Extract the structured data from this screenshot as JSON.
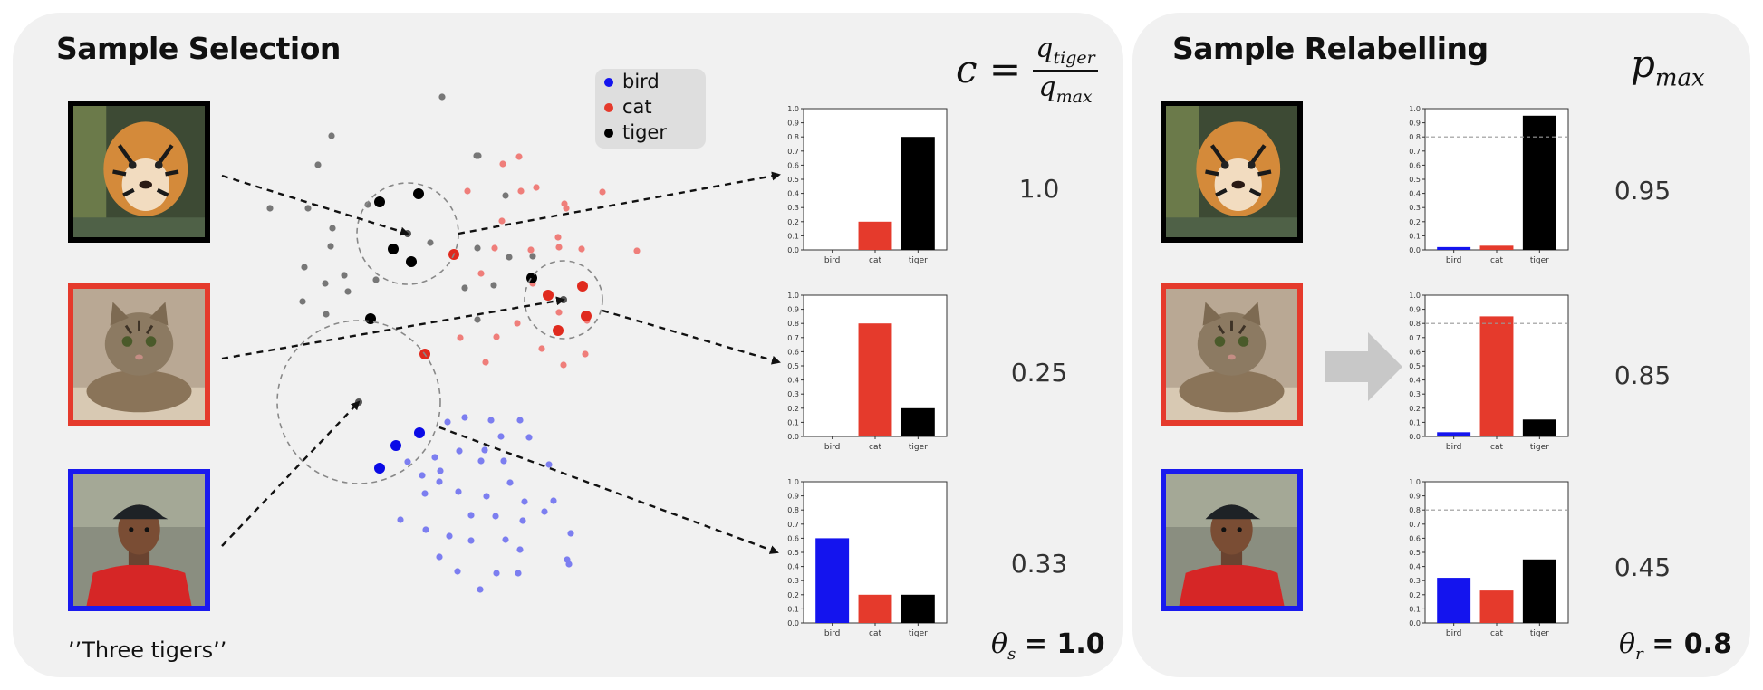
{
  "panels": {
    "selection": {
      "title": "Sample Selection"
    },
    "relabelling": {
      "title": "Sample Relabelling"
    }
  },
  "legend": [
    {
      "label": "bird",
      "color": "#1414ee"
    },
    {
      "label": "cat",
      "color": "#e53a2c"
    },
    {
      "label": "tiger",
      "color": "#000000"
    }
  ],
  "formula": {
    "lhs": "c",
    "numerator": "q",
    "numerator_sub": "tiger",
    "denominator": "q",
    "denominator_sub": "max"
  },
  "pmax_label": {
    "symbol": "p",
    "sub": "max"
  },
  "selection_values": [
    "1.0",
    "0.25",
    "0.33"
  ],
  "relabel_values": [
    "0.95",
    "0.85",
    "0.45"
  ],
  "theta_s": {
    "symbol": "θ",
    "sub": "s",
    "value": "= 1.0"
  },
  "theta_r": {
    "symbol": "θ",
    "sub": "r",
    "value": "= 0.8"
  },
  "caption": "’’Three tigers’’",
  "images": [
    {
      "subject": "tiger-photo",
      "border_color": "#000000"
    },
    {
      "subject": "cat-photo",
      "border_color": "#e53a2c"
    },
    {
      "subject": "person-photo",
      "border_color": "#1a1aee"
    }
  ],
  "chart_data": [
    {
      "type": "bar",
      "categories": [
        "bird",
        "cat",
        "tiger"
      ],
      "values": [
        0.0,
        0.2,
        0.8
      ],
      "colors": [
        "#1414ee",
        "#e53a2c",
        "#000000"
      ],
      "ylim": [
        0,
        1.0
      ],
      "yticks": [
        "0.0",
        "0.1",
        "0.2",
        "0.3",
        "0.4",
        "0.5",
        "0.6",
        "0.7",
        "0.8",
        "0.9",
        "1.0"
      ]
    },
    {
      "type": "bar",
      "categories": [
        "bird",
        "cat",
        "tiger"
      ],
      "values": [
        0.0,
        0.8,
        0.2
      ],
      "colors": [
        "#1414ee",
        "#e53a2c",
        "#000000"
      ],
      "ylim": [
        0,
        1.0
      ],
      "yticks": [
        "0.0",
        "0.1",
        "0.2",
        "0.3",
        "0.4",
        "0.5",
        "0.6",
        "0.7",
        "0.8",
        "0.9",
        "1.0"
      ]
    },
    {
      "type": "bar",
      "categories": [
        "bird",
        "cat",
        "tiger"
      ],
      "values": [
        0.6,
        0.2,
        0.2
      ],
      "colors": [
        "#1414ee",
        "#e53a2c",
        "#000000"
      ],
      "ylim": [
        0,
        1.0
      ],
      "yticks": [
        "0.0",
        "0.1",
        "0.2",
        "0.3",
        "0.4",
        "0.5",
        "0.6",
        "0.7",
        "0.8",
        "0.9",
        "1.0"
      ]
    },
    {
      "type": "bar",
      "categories": [
        "bird",
        "cat",
        "tiger"
      ],
      "values": [
        0.02,
        0.03,
        0.95
      ],
      "colors": [
        "#1414ee",
        "#e53a2c",
        "#000000"
      ],
      "ylim": [
        0,
        1.0
      ],
      "threshold": 0.8,
      "yticks": [
        "0.0",
        "0.1",
        "0.2",
        "0.3",
        "0.4",
        "0.5",
        "0.6",
        "0.7",
        "0.8",
        "0.9",
        "1.0"
      ]
    },
    {
      "type": "bar",
      "categories": [
        "bird",
        "cat",
        "tiger"
      ],
      "values": [
        0.03,
        0.85,
        0.12
      ],
      "colors": [
        "#1414ee",
        "#e53a2c",
        "#000000"
      ],
      "ylim": [
        0,
        1.0
      ],
      "threshold": 0.8,
      "yticks": [
        "0.0",
        "0.1",
        "0.2",
        "0.3",
        "0.4",
        "0.5",
        "0.6",
        "0.7",
        "0.8",
        "0.9",
        "1.0"
      ]
    },
    {
      "type": "bar",
      "categories": [
        "bird",
        "cat",
        "tiger"
      ],
      "values": [
        0.32,
        0.23,
        0.45
      ],
      "colors": [
        "#1414ee",
        "#e53a2c",
        "#000000"
      ],
      "ylim": [
        0,
        1.0
      ],
      "threshold": 0.8,
      "yticks": [
        "0.0",
        "0.1",
        "0.2",
        "0.3",
        "0.4",
        "0.5",
        "0.6",
        "0.7",
        "0.8",
        "0.9",
        "1.0"
      ]
    }
  ]
}
